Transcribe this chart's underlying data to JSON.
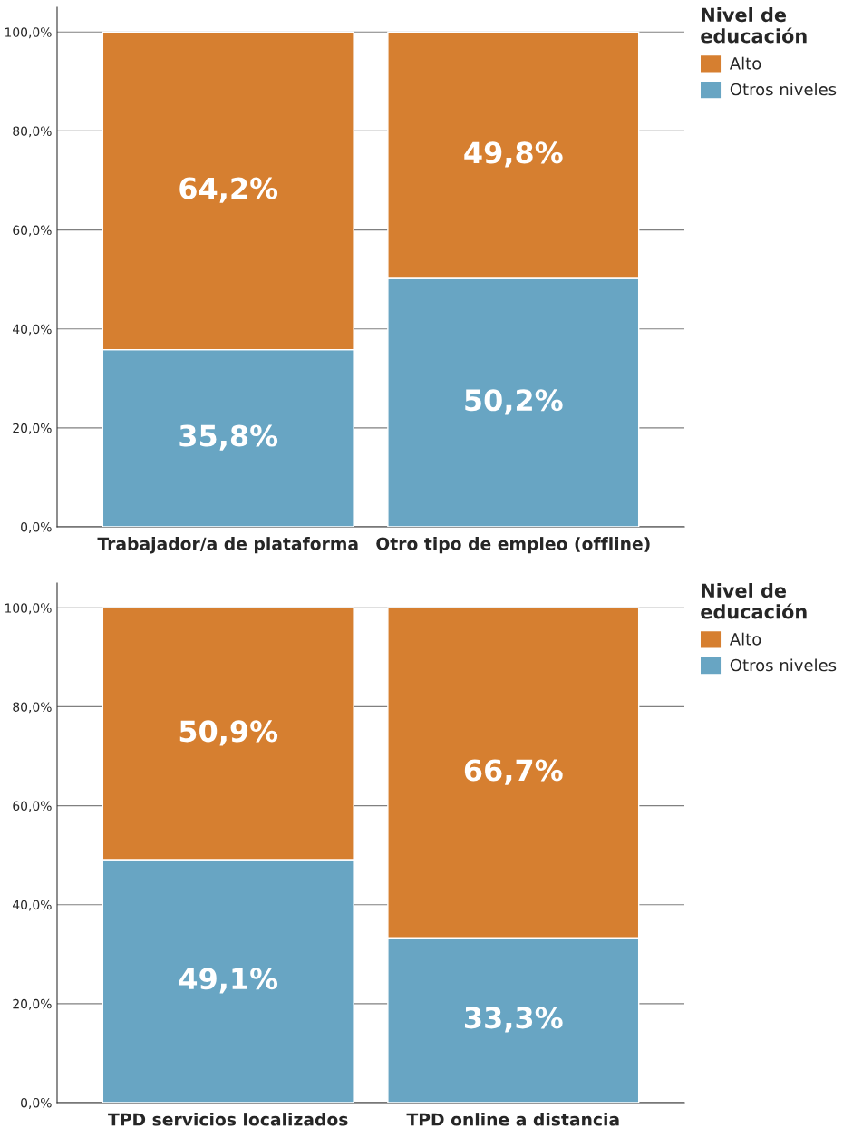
{
  "chart_data": [
    {
      "type": "bar",
      "stacked": true,
      "categories": [
        "Trabajador/a de plataforma",
        "Otro tipo de empleo (offline)"
      ],
      "legend_title": "Nivel de\neducación",
      "legend": "right",
      "grid": "y",
      "ylim": [
        0,
        105
      ],
      "yticks": [
        {
          "value": 0,
          "label": "0,0%"
        },
        {
          "value": 20,
          "label": "20,0%"
        },
        {
          "value": 40,
          "label": "40,0%"
        },
        {
          "value": 60,
          "label": "60,0%"
        },
        {
          "value": 80,
          "label": "80,0%"
        },
        {
          "value": 100,
          "label": "100,0%"
        }
      ],
      "series": [
        {
          "name": "Otros niveles",
          "color": "#68a5c3",
          "values": [
            35.8,
            50.2
          ],
          "value_labels": [
            "35,8%",
            "50,2%"
          ]
        },
        {
          "name": "Alto",
          "color": "#d67f30",
          "values": [
            64.2,
            49.8
          ],
          "value_labels": [
            "64,2%",
            "49,8%"
          ]
        }
      ]
    },
    {
      "type": "bar",
      "stacked": true,
      "categories": [
        "TPD servicios localizados",
        "TPD online a distancia"
      ],
      "legend_title": "Nivel de\neducación",
      "legend": "right",
      "grid": "y",
      "ylim": [
        0,
        105
      ],
      "yticks": [
        {
          "value": 0,
          "label": "0,0%"
        },
        {
          "value": 20,
          "label": "20,0%"
        },
        {
          "value": 40,
          "label": "40,0%"
        },
        {
          "value": 60,
          "label": "60,0%"
        },
        {
          "value": 80,
          "label": "80,0%"
        },
        {
          "value": 100,
          "label": "100,0%"
        }
      ],
      "series": [
        {
          "name": "Otros niveles",
          "color": "#68a5c3",
          "values": [
            49.1,
            33.3
          ],
          "value_labels": [
            "49,1%",
            "33,3%"
          ]
        },
        {
          "name": "Alto",
          "color": "#d67f30",
          "values": [
            50.9,
            66.7
          ],
          "value_labels": [
            "50,9%",
            "66,7%"
          ]
        }
      ]
    }
  ]
}
